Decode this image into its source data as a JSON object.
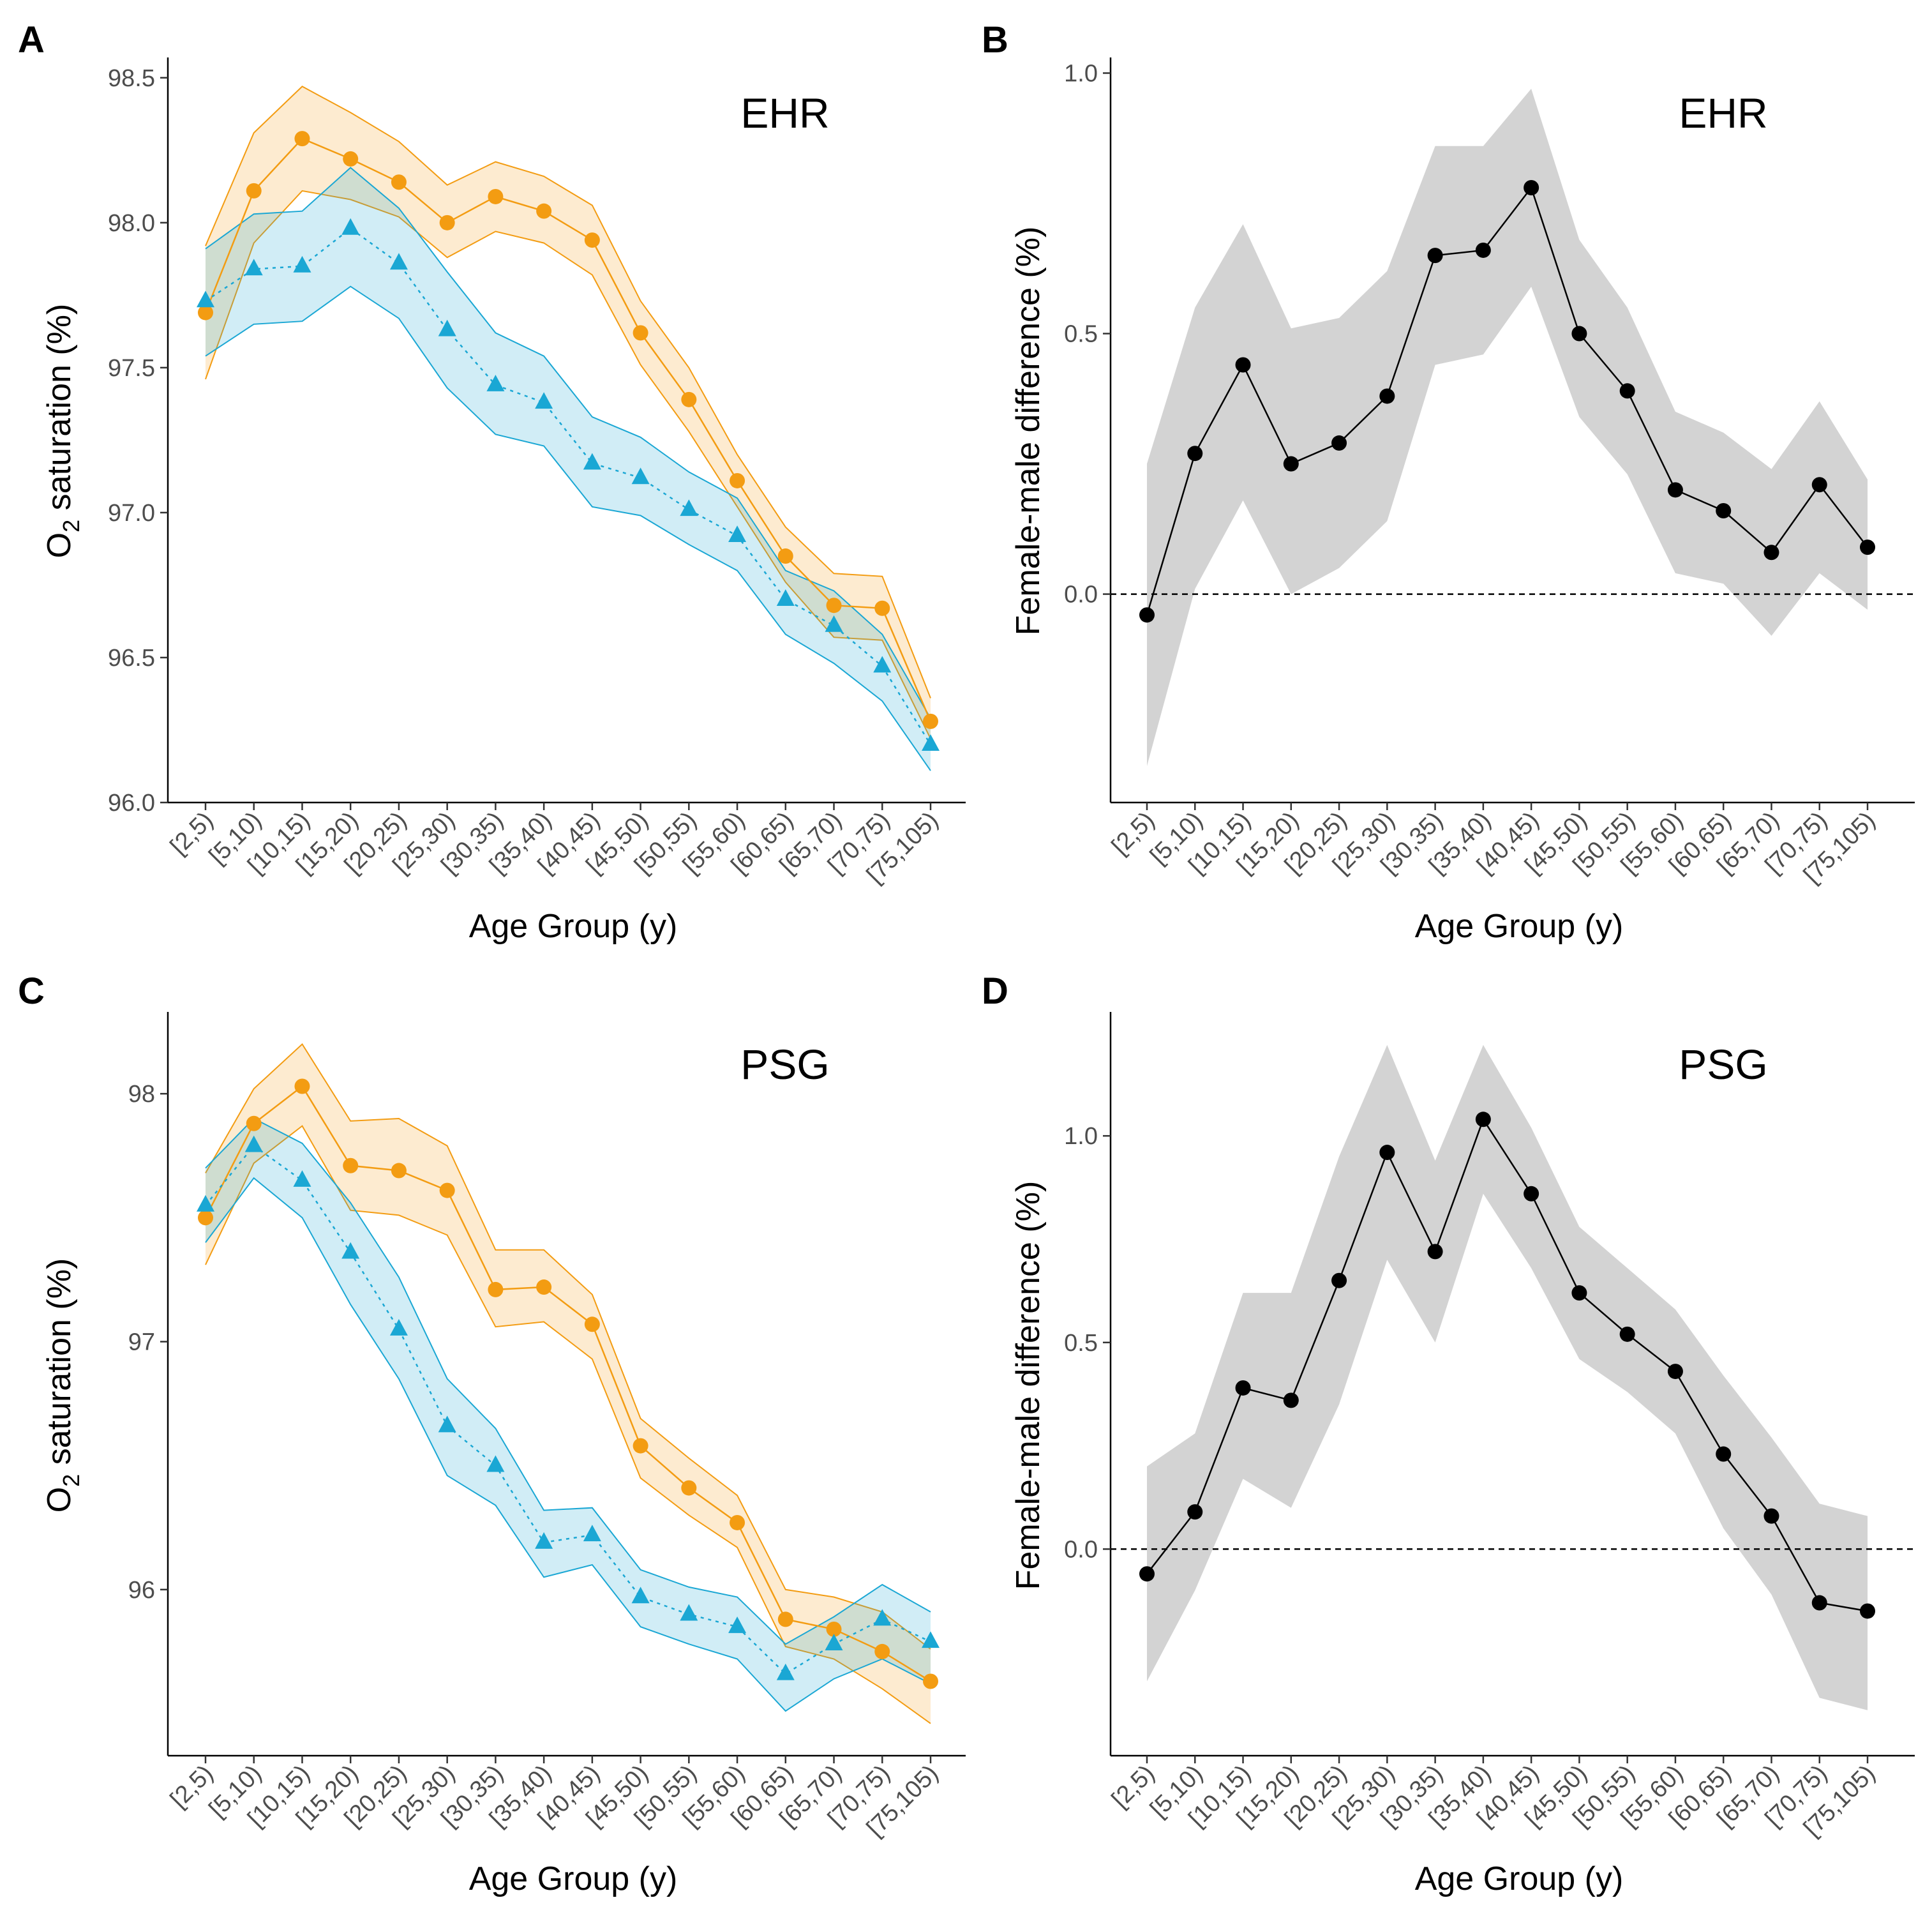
{
  "colors": {
    "female": "#F39C12",
    "male": "#1AA7D4",
    "diff_line": "#000000",
    "diff_band": "#D3D3D3",
    "reference_line": "#000000"
  },
  "chart_data": [
    {
      "panel": "A",
      "type": "line",
      "tag": "EHR",
      "xlabel": "Age Group (y)",
      "ylabel_prefix": "O",
      "ylabel_sub": "2",
      "ylabel_suffix": " saturation  (%)",
      "categories": [
        "[2,5)",
        "[5,10)",
        "[10,15)",
        "[15,20)",
        "[20,25)",
        "[25,30)",
        "[30,35)",
        "[35,40)",
        "[40,45)",
        "[45,50)",
        "[50,55)",
        "[55,60)",
        "[60,65)",
        "[65,70)",
        "[70,75)",
        "[75,105)"
      ],
      "ylim": [
        96.0,
        98.57
      ],
      "yticks": [
        96.0,
        96.5,
        97.0,
        97.5,
        98.0,
        98.5
      ],
      "ytick_labels": [
        "96.0",
        "96.5",
        "97.0",
        "97.5",
        "98.0",
        "98.5"
      ],
      "series": [
        {
          "name": "female",
          "marker": "circle",
          "line": "solid",
          "color": "#F39C12",
          "values": [
            97.69,
            98.11,
            98.29,
            98.22,
            98.14,
            98.0,
            98.09,
            98.04,
            97.94,
            97.62,
            97.39,
            97.11,
            96.85,
            96.68,
            96.67,
            96.28
          ],
          "lower": [
            97.46,
            97.93,
            98.11,
            98.08,
            98.02,
            97.88,
            97.97,
            97.93,
            97.82,
            97.51,
            97.28,
            97.02,
            96.76,
            96.57,
            96.56,
            96.22
          ],
          "upper": [
            97.92,
            98.31,
            98.47,
            98.38,
            98.28,
            98.13,
            98.21,
            98.16,
            98.06,
            97.73,
            97.5,
            97.2,
            96.95,
            96.79,
            96.78,
            96.36
          ]
        },
        {
          "name": "male",
          "marker": "triangle",
          "line": "dotted",
          "color": "#1AA7D4",
          "values": [
            97.73,
            97.84,
            97.85,
            97.98,
            97.86,
            97.63,
            97.44,
            97.38,
            97.17,
            97.12,
            97.01,
            96.92,
            96.7,
            96.61,
            96.47,
            96.2
          ],
          "lower": [
            97.54,
            97.65,
            97.66,
            97.78,
            97.67,
            97.43,
            97.27,
            97.23,
            97.02,
            96.99,
            96.89,
            96.8,
            96.58,
            96.48,
            96.35,
            96.11
          ],
          "upper": [
            97.91,
            98.03,
            98.04,
            98.19,
            98.05,
            97.83,
            97.62,
            97.54,
            97.33,
            97.26,
            97.14,
            97.05,
            96.8,
            96.73,
            96.58,
            96.29
          ]
        }
      ]
    },
    {
      "panel": "B",
      "type": "line",
      "tag": "EHR",
      "xlabel": "Age Group (y)",
      "ylabel": "Female-male difference (%)",
      "categories": [
        "[2,5)",
        "[5,10)",
        "[10,15)",
        "[15,20)",
        "[20,25)",
        "[25,30)",
        "[30,35)",
        "[35,40)",
        "[40,45)",
        "[45,50)",
        "[50,55)",
        "[55,60)",
        "[60,65)",
        "[65,70)",
        "[70,75)",
        "[75,105)"
      ],
      "ylim": [
        -0.4,
        1.03
      ],
      "yticks": [
        0.0,
        0.5,
        1.0
      ],
      "ytick_labels": [
        "0.0",
        "0.5",
        "1.0"
      ],
      "reference_line": 0.0,
      "series": [
        {
          "name": "difference",
          "marker": "circle",
          "line": "solid",
          "color": "#000000",
          "values": [
            -0.04,
            0.27,
            0.44,
            0.25,
            0.29,
            0.38,
            0.65,
            0.66,
            0.78,
            0.5,
            0.39,
            0.2,
            0.16,
            0.08,
            0.21,
            0.09
          ],
          "lower": [
            -0.33,
            0.01,
            0.18,
            0.0,
            0.05,
            0.14,
            0.44,
            0.46,
            0.59,
            0.34,
            0.23,
            0.04,
            0.02,
            -0.08,
            0.04,
            -0.03
          ],
          "upper": [
            0.25,
            0.55,
            0.71,
            0.51,
            0.53,
            0.62,
            0.86,
            0.86,
            0.97,
            0.68,
            0.55,
            0.35,
            0.31,
            0.24,
            0.37,
            0.22
          ]
        }
      ]
    },
    {
      "panel": "C",
      "type": "line",
      "tag": "PSG",
      "xlabel": "Age Group (y)",
      "ylabel_prefix": "O",
      "ylabel_sub": "2",
      "ylabel_suffix": " saturation  (%)",
      "categories": [
        "[2,5)",
        "[5,10)",
        "[10,15)",
        "[15,20)",
        "[20,25)",
        "[25,30)",
        "[30,35)",
        "[35,40)",
        "[40,45)",
        "[45,50)",
        "[50,55)",
        "[55,60)",
        "[60,65)",
        "[65,70)",
        "[70,75)",
        "[75,105)"
      ],
      "ylim": [
        95.33,
        98.33
      ],
      "yticks": [
        96,
        97,
        98
      ],
      "ytick_labels": [
        "96",
        "97",
        "98"
      ],
      "series": [
        {
          "name": "female",
          "marker": "circle",
          "line": "solid",
          "color": "#F39C12",
          "values": [
            97.5,
            97.88,
            98.03,
            97.71,
            97.69,
            97.61,
            97.21,
            97.22,
            97.07,
            96.58,
            96.41,
            96.27,
            95.88,
            95.84,
            95.75,
            95.63
          ],
          "lower": [
            97.31,
            97.72,
            97.87,
            97.53,
            97.51,
            97.43,
            97.06,
            97.08,
            96.93,
            96.45,
            96.3,
            96.17,
            95.77,
            95.72,
            95.6,
            95.46
          ],
          "upper": [
            97.68,
            98.02,
            98.2,
            97.89,
            97.9,
            97.79,
            97.37,
            97.37,
            97.19,
            96.69,
            96.53,
            96.38,
            96.0,
            95.97,
            95.91,
            95.76
          ]
        },
        {
          "name": "male",
          "marker": "triangle",
          "line": "dotted",
          "color": "#1AA7D4",
          "values": [
            97.55,
            97.79,
            97.65,
            97.36,
            97.05,
            96.66,
            96.5,
            96.19,
            96.22,
            95.97,
            95.9,
            95.85,
            95.66,
            95.78,
            95.88,
            95.79
          ],
          "lower": [
            97.4,
            97.66,
            97.5,
            97.15,
            96.85,
            96.46,
            96.34,
            96.05,
            96.1,
            95.85,
            95.78,
            95.72,
            95.51,
            95.64,
            95.72,
            95.62
          ],
          "upper": [
            97.7,
            97.9,
            97.8,
            97.56,
            97.26,
            96.85,
            96.65,
            96.32,
            96.33,
            96.08,
            96.01,
            95.97,
            95.78,
            95.89,
            96.02,
            95.91
          ]
        }
      ]
    },
    {
      "panel": "D",
      "type": "line",
      "tag": "PSG",
      "xlabel": "Age Group (y)",
      "ylabel": "Female-male difference (%)",
      "categories": [
        "[2,5)",
        "[5,10)",
        "[10,15)",
        "[15,20)",
        "[20,25)",
        "[25,30)",
        "[30,35)",
        "[35,40)",
        "[40,45)",
        "[45,50)",
        "[50,55)",
        "[55,60)",
        "[60,65)",
        "[65,70)",
        "[70,75)",
        "[75,105)"
      ],
      "ylim": [
        -0.5,
        1.3
      ],
      "yticks": [
        0.0,
        0.5,
        1.0
      ],
      "ytick_labels": [
        "0.0",
        "0.5",
        "1.0"
      ],
      "reference_line": 0.0,
      "series": [
        {
          "name": "difference",
          "marker": "circle",
          "line": "solid",
          "color": "#000000",
          "values": [
            -0.06,
            0.09,
            0.39,
            0.36,
            0.65,
            0.96,
            0.72,
            1.04,
            0.86,
            0.62,
            0.52,
            0.43,
            0.23,
            0.08,
            -0.13,
            -0.15
          ],
          "lower": [
            -0.32,
            -0.1,
            0.17,
            0.1,
            0.35,
            0.7,
            0.5,
            0.86,
            0.68,
            0.46,
            0.38,
            0.28,
            0.05,
            -0.11,
            -0.36,
            -0.39
          ],
          "upper": [
            0.2,
            0.28,
            0.62,
            0.62,
            0.95,
            1.22,
            0.94,
            1.22,
            1.02,
            0.78,
            0.68,
            0.58,
            0.42,
            0.27,
            0.11,
            0.08
          ]
        }
      ]
    }
  ]
}
